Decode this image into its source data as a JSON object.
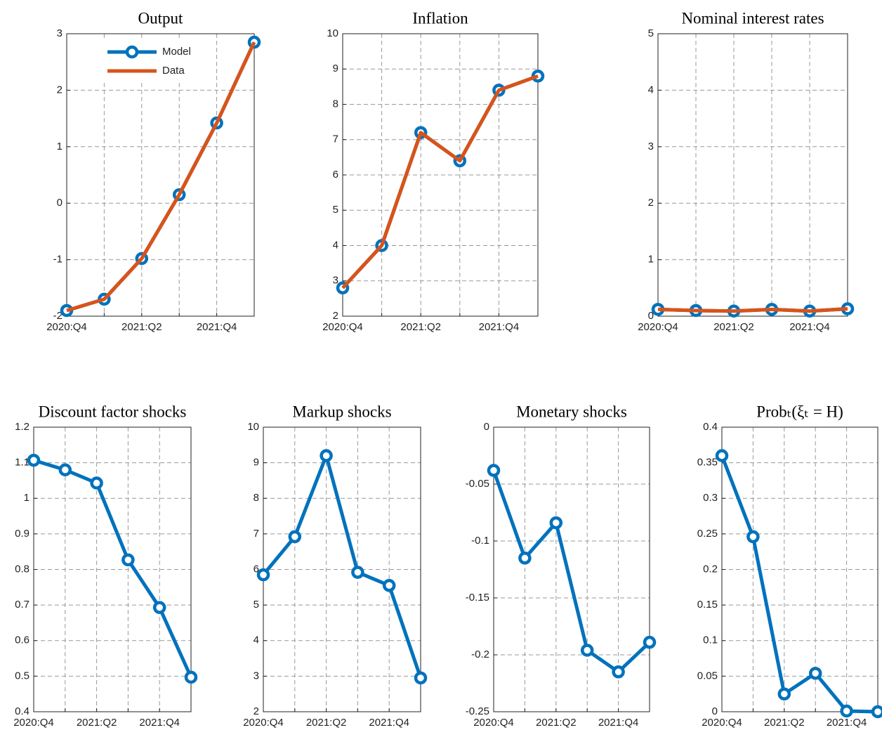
{
  "chart_data": [
    {
      "type": "line",
      "title": "Output",
      "categories": [
        "2020:Q4",
        null,
        "2021:Q2",
        null,
        "2021:Q4",
        null
      ],
      "series": [
        {
          "name": "Model",
          "color": "#0072BD",
          "marker": "circle",
          "values": [
            -1.9,
            -1.7,
            -0.98,
            0.15,
            1.42,
            2.85
          ]
        },
        {
          "name": "Data",
          "color": "#D95319",
          "values": [
            -1.9,
            -1.7,
            -0.98,
            0.15,
            1.42,
            2.85
          ]
        }
      ],
      "ylim": [
        -2,
        3
      ],
      "yticks": [
        -2,
        -1,
        0,
        1,
        2,
        3
      ],
      "grid": true,
      "legend": "upper-left"
    },
    {
      "type": "line",
      "title": "Inflation",
      "categories": [
        "2020:Q4",
        null,
        "2021:Q2",
        null,
        "2021:Q4",
        null
      ],
      "series": [
        {
          "color": "#0072BD",
          "marker": "circle",
          "values": [
            2.8,
            4.0,
            7.2,
            6.4,
            8.4,
            8.8
          ]
        },
        {
          "color": "#D95319",
          "values": [
            2.8,
            4.0,
            7.2,
            6.4,
            8.4,
            8.8
          ]
        }
      ],
      "ylim": [
        2,
        10
      ],
      "yticks": [
        2,
        3,
        4,
        5,
        6,
        7,
        8,
        9,
        10
      ],
      "grid": true
    },
    {
      "type": "line",
      "title": "Nominal interest rates",
      "categories": [
        "2020:Q4",
        null,
        "2021:Q2",
        null,
        "2021:Q4",
        null
      ],
      "series": [
        {
          "color": "#0072BD",
          "marker": "circle",
          "values": [
            0.12,
            0.1,
            0.09,
            0.12,
            0.09,
            0.13
          ]
        },
        {
          "color": "#D95319",
          "values": [
            0.12,
            0.1,
            0.09,
            0.12,
            0.09,
            0.13
          ]
        }
      ],
      "ylim": [
        0,
        5
      ],
      "yticks": [
        0,
        1,
        2,
        3,
        4,
        5
      ],
      "grid": true
    },
    {
      "type": "line",
      "title": "Discount factor shocks",
      "categories": [
        "2020:Q4",
        null,
        "2021:Q2",
        null,
        "2021:Q4",
        null
      ],
      "series": [
        {
          "color": "#0072BD",
          "marker": "circle",
          "values": [
            1.107,
            1.08,
            1.043,
            0.827,
            0.693,
            0.497
          ]
        }
      ],
      "ylim": [
        0.4,
        1.2
      ],
      "yticks": [
        0.4,
        0.5,
        0.6,
        0.7,
        0.8,
        0.9,
        1,
        1.1,
        1.2
      ],
      "grid": true
    },
    {
      "type": "line",
      "title": "Markup shocks",
      "categories": [
        "2020:Q4",
        null,
        "2021:Q2",
        null,
        "2021:Q4",
        null
      ],
      "series": [
        {
          "color": "#0072BD",
          "marker": "circle",
          "values": [
            5.85,
            6.92,
            9.2,
            5.92,
            5.55,
            2.95
          ]
        }
      ],
      "ylim": [
        2,
        10
      ],
      "yticks": [
        2,
        3,
        4,
        5,
        6,
        7,
        8,
        9,
        10
      ],
      "grid": true
    },
    {
      "type": "line",
      "title": "Monetary shocks",
      "categories": [
        "2020:Q4",
        null,
        "2021:Q2",
        null,
        "2021:Q4",
        null
      ],
      "series": [
        {
          "color": "#0072BD",
          "marker": "circle",
          "values": [
            -0.038,
            -0.115,
            -0.084,
            -0.196,
            -0.215,
            -0.189
          ]
        }
      ],
      "ylim": [
        -0.25,
        0
      ],
      "yticks": [
        -0.25,
        -0.2,
        -0.15,
        -0.1,
        -0.05,
        0
      ],
      "grid": true
    },
    {
      "type": "line",
      "title": "Probₜ(ξₜ = H)",
      "categories": [
        "2020:Q4",
        null,
        "2021:Q2",
        null,
        "2021:Q4",
        null
      ],
      "series": [
        {
          "color": "#0072BD",
          "marker": "circle",
          "values": [
            0.36,
            0.246,
            0.025,
            0.054,
            0.001,
            0.0
          ]
        }
      ],
      "ylim": [
        0,
        0.4
      ],
      "yticks": [
        0,
        0.05,
        0.1,
        0.15,
        0.2,
        0.25,
        0.3,
        0.35,
        0.4
      ],
      "grid": true
    }
  ]
}
